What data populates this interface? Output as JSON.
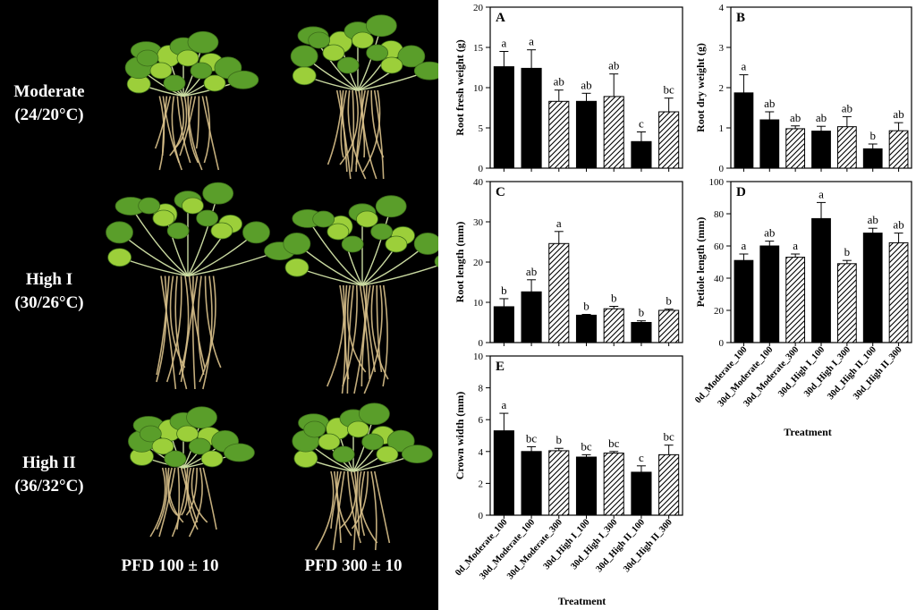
{
  "photo_panel": {
    "rows": [
      {
        "name": "Moderate",
        "temp": "(24/20°C)"
      },
      {
        "name": "High I",
        "temp": "(30/26°C)"
      },
      {
        "name": "High II",
        "temp": "(36/32°C)"
      }
    ],
    "columns": [
      "PFD 100 ± 10",
      "PFD 300 ± 10"
    ],
    "colors": {
      "background": "#000000",
      "leaf": "#5a9e2a",
      "leaf_light": "#9ccf3a",
      "root": "#d8c08a"
    }
  },
  "categories": [
    "0d_Moderate_100",
    "30d_Moderate_100",
    "30d_Moderate_300",
    "30d_High I_100",
    "30d_High I_300",
    "30d_High II_100",
    "30d_High II_300"
  ],
  "patterns": [
    "solid",
    "solid",
    "hatch",
    "solid",
    "hatch",
    "solid",
    "hatch"
  ],
  "xlabel_left": "Treatment",
  "xlabel_right": "Treatment",
  "chart_data": [
    {
      "panel": "A",
      "type": "bar",
      "ylabel": "Root fresh weight (g)",
      "ylim": [
        0,
        20
      ],
      "yticks": [
        0,
        5,
        10,
        15,
        20
      ],
      "values": [
        12.6,
        12.4,
        8.3,
        8.3,
        8.9,
        3.3,
        7.0
      ],
      "errors": [
        1.9,
        2.3,
        1.4,
        1.0,
        2.8,
        1.2,
        1.7
      ],
      "letters": [
        "a",
        "a",
        "ab",
        "ab",
        "ab",
        "c",
        "bc"
      ]
    },
    {
      "panel": "B",
      "type": "bar",
      "ylabel": "Root dry weight (g)",
      "ylim": [
        0,
        4
      ],
      "yticks": [
        0,
        1,
        2,
        3,
        4
      ],
      "values": [
        1.87,
        1.2,
        0.98,
        0.92,
        1.03,
        0.48,
        0.93
      ],
      "errors": [
        0.45,
        0.2,
        0.07,
        0.12,
        0.25,
        0.12,
        0.2
      ],
      "letters": [
        "a",
        "ab",
        "ab",
        "ab",
        "ab",
        "b",
        "ab"
      ]
    },
    {
      "panel": "C",
      "type": "bar",
      "ylabel": "Root length (mm)",
      "ylim": [
        0,
        40
      ],
      "yticks": [
        0,
        10,
        20,
        30,
        40
      ],
      "values": [
        8.9,
        12.6,
        24.6,
        6.8,
        8.4,
        5.0,
        8.0
      ],
      "errors": [
        2.0,
        3.0,
        3.0,
        0.2,
        0.6,
        0.4,
        0.3
      ],
      "letters": [
        "b",
        "ab",
        "a",
        "b",
        "b",
        "b",
        "b"
      ]
    },
    {
      "panel": "D",
      "type": "bar",
      "ylabel": "Petiole length (mm)",
      "ylim": [
        0,
        100
      ],
      "yticks": [
        0,
        20,
        40,
        60,
        80,
        100
      ],
      "values": [
        51,
        60,
        53,
        77,
        49,
        68,
        62
      ],
      "errors": [
        4,
        3,
        2,
        10,
        2,
        3,
        6
      ],
      "letters": [
        "a",
        "ab",
        "a",
        "a",
        "b",
        "ab",
        "ab"
      ]
    },
    {
      "panel": "E",
      "type": "bar",
      "ylabel": "Crown width (mm)",
      "ylim": [
        0,
        10
      ],
      "yticks": [
        0,
        2,
        4,
        6,
        8,
        10
      ],
      "values": [
        5.3,
        4.0,
        4.05,
        3.65,
        3.9,
        2.7,
        3.8
      ],
      "errors": [
        1.1,
        0.3,
        0.15,
        0.15,
        0.1,
        0.4,
        0.6
      ],
      "letters": [
        "a",
        "bc",
        "b",
        "bc",
        "bc",
        "c",
        "bc"
      ]
    }
  ]
}
